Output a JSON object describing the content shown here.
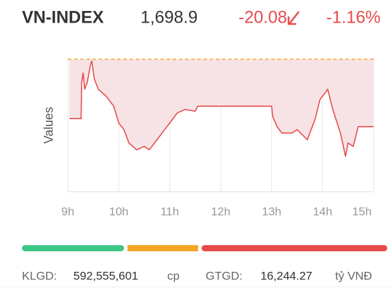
{
  "header": {
    "name": "VN-INDEX",
    "price": "1,698.9",
    "change": "-20.08",
    "change_percent": "-1.16%"
  },
  "chart_data": {
    "type": "line",
    "ylabel": "Values",
    "color": "#e84a4a",
    "reference": 1718.98,
    "x": [
      9.03,
      9.26,
      9.27,
      9.3,
      9.33,
      9.38,
      9.44,
      9.47,
      9.52,
      9.6,
      9.75,
      9.9,
      10.0,
      10.1,
      10.2,
      10.35,
      10.5,
      10.6,
      10.75,
      10.9,
      11.0,
      11.15,
      11.3,
      11.5,
      11.55,
      12.0,
      13.0,
      13.02,
      13.1,
      13.2,
      13.4,
      13.5,
      13.7,
      13.85,
      13.95,
      14.1,
      14.2,
      14.35,
      14.45,
      14.5,
      14.6,
      14.7,
      15.0
    ],
    "values": [
      1701.3,
      1701.3,
      1712,
      1715,
      1710,
      1712,
      1717,
      1718.5,
      1713,
      1710,
      1708,
      1705,
      1700,
      1698,
      1694,
      1692,
      1693,
      1692,
      1695,
      1698,
      1700,
      1703,
      1704,
      1703.5,
      1705,
      1705,
      1705,
      1702,
      1699,
      1697,
      1697,
      1698,
      1695,
      1701,
      1707,
      1710,
      1704,
      1697,
      1690,
      1694,
      1693,
      1698.9,
      1698.9
    ],
    "xlim": [
      9,
      15
    ],
    "ylim": [
      1679.5,
      1719.5
    ],
    "xticks": [
      {
        "value": 9,
        "label": "9h"
      },
      {
        "value": 10,
        "label": "10h"
      },
      {
        "value": 11,
        "label": "11h"
      },
      {
        "value": 12,
        "label": "12h"
      },
      {
        "value": 13,
        "label": "13h"
      },
      {
        "value": 14,
        "label": "14h"
      },
      {
        "value": 15,
        "label": "15h"
      }
    ],
    "grid": true
  },
  "footer": {
    "volume_label": "KLGD:",
    "volume": "592,555,601",
    "volume_unit": "cp",
    "value_label": "GTGD:",
    "value": "16,244.27",
    "value_unit": "tỷ VNĐ"
  }
}
